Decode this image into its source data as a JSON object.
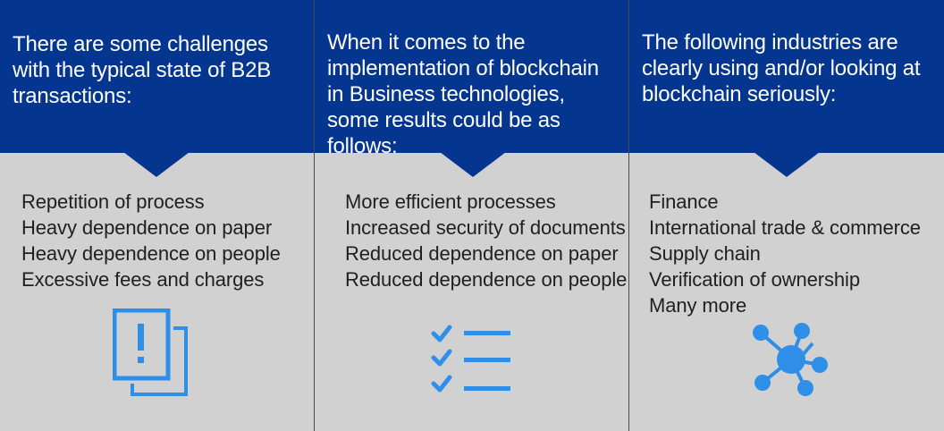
{
  "accent_color": "#2f8fe8",
  "header_color": "#05368f",
  "background_color": "#d1d1d1",
  "panels": [
    {
      "title": "There are some challenges with the typical state of B2B transactions:",
      "items": [
        "Repetition of process",
        "Heavy dependence on paper",
        "Heavy dependence on people",
        "Excessive fees and charges"
      ],
      "icon": "document-alert-icon"
    },
    {
      "title": "When it comes to the implementation of blockchain in Business technologies, some results could be as follows:",
      "items": [
        "More efficient processes",
        "Increased security of documents",
        "Reduced dependence on paper",
        "Reduced dependence on people"
      ],
      "icon": "checklist-icon"
    },
    {
      "title": "The following industries are clearly using and/or looking at blockchain seriously:",
      "items": [
        "Finance",
        "International trade & commerce",
        "Supply chain",
        "Verification of ownership",
        "Many more"
      ],
      "icon": "network-hub-icon"
    }
  ]
}
